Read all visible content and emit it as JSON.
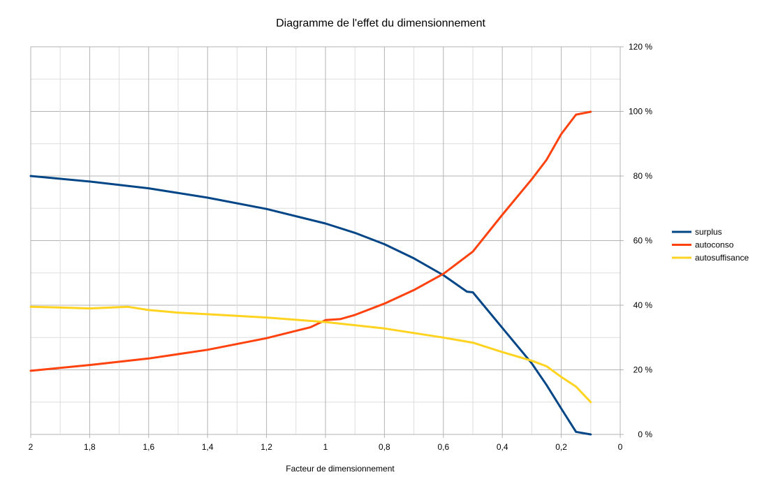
{
  "chart_data": {
    "type": "line",
    "title": "Diagramme de l'effet du dimensionnement",
    "xlabel": "Facteur de dimensionnement",
    "ylabel": "",
    "x_reversed": true,
    "xlim": [
      2,
      0
    ],
    "ylim": [
      0,
      1.2
    ],
    "x_ticks": [
      {
        "value": 2,
        "label": "2"
      },
      {
        "value": 1.8,
        "label": "1,8"
      },
      {
        "value": 1.6,
        "label": "1,6"
      },
      {
        "value": 1.4,
        "label": "1,4"
      },
      {
        "value": 1.2,
        "label": "1,2"
      },
      {
        "value": 1,
        "label": "1"
      },
      {
        "value": 0.8,
        "label": "0,8"
      },
      {
        "value": 0.6,
        "label": "0,6"
      },
      {
        "value": 0.4,
        "label": "0,4"
      },
      {
        "value": 0.2,
        "label": "0,2"
      },
      {
        "value": 0,
        "label": "0"
      }
    ],
    "y_ticks": [
      {
        "value": 0,
        "label": "0 %"
      },
      {
        "value": 0.2,
        "label": "20 %"
      },
      {
        "value": 0.4,
        "label": "40 %"
      },
      {
        "value": 0.6,
        "label": "60 %"
      },
      {
        "value": 0.8,
        "label": "80 %"
      },
      {
        "value": 1,
        "label": "100 %"
      },
      {
        "value": 1.2,
        "label": "120 %"
      }
    ],
    "y_axis_position": "right",
    "grid": true,
    "legend_position": "right",
    "series": [
      {
        "name": "surplus",
        "color": "#004586",
        "points": [
          [
            2,
            0.8
          ],
          [
            1.8,
            0.783
          ],
          [
            1.6,
            0.762
          ],
          [
            1.4,
            0.733
          ],
          [
            1.2,
            0.698
          ],
          [
            1.0,
            0.653
          ],
          [
            0.9,
            0.624
          ],
          [
            0.8,
            0.589
          ],
          [
            0.7,
            0.545
          ],
          [
            0.6,
            0.493
          ],
          [
            0.52,
            0.442
          ],
          [
            0.5,
            0.44
          ],
          [
            0.4,
            0.33
          ],
          [
            0.3,
            0.22
          ],
          [
            0.25,
            0.153
          ],
          [
            0.2,
            0.08
          ],
          [
            0.15,
            0.008
          ],
          [
            0.1,
            0.0
          ]
        ]
      },
      {
        "name": "autoconso",
        "color": "#ff420e",
        "points": [
          [
            2,
            0.197
          ],
          [
            1.8,
            0.215
          ],
          [
            1.6,
            0.235
          ],
          [
            1.4,
            0.262
          ],
          [
            1.2,
            0.298
          ],
          [
            1.05,
            0.332
          ],
          [
            1.0,
            0.354
          ],
          [
            0.95,
            0.357
          ],
          [
            0.9,
            0.37
          ],
          [
            0.8,
            0.405
          ],
          [
            0.7,
            0.447
          ],
          [
            0.6,
            0.497
          ],
          [
            0.5,
            0.566
          ],
          [
            0.4,
            0.68
          ],
          [
            0.3,
            0.79
          ],
          [
            0.25,
            0.85
          ],
          [
            0.2,
            0.93
          ],
          [
            0.15,
            0.99
          ],
          [
            0.1,
            0.999
          ]
        ]
      },
      {
        "name": "autosuffisance",
        "color": "#ffd320",
        "points": [
          [
            2,
            0.395
          ],
          [
            1.9,
            0.393
          ],
          [
            1.8,
            0.39
          ],
          [
            1.7,
            0.394
          ],
          [
            1.67,
            0.395
          ],
          [
            1.6,
            0.385
          ],
          [
            1.5,
            0.377
          ],
          [
            1.4,
            0.372
          ],
          [
            1.2,
            0.362
          ],
          [
            1.0,
            0.348
          ],
          [
            0.8,
            0.328
          ],
          [
            0.6,
            0.3
          ],
          [
            0.5,
            0.284
          ],
          [
            0.4,
            0.255
          ],
          [
            0.3,
            0.228
          ],
          [
            0.25,
            0.211
          ],
          [
            0.2,
            0.178
          ],
          [
            0.15,
            0.148
          ],
          [
            0.1,
            0.1
          ]
        ]
      }
    ]
  }
}
